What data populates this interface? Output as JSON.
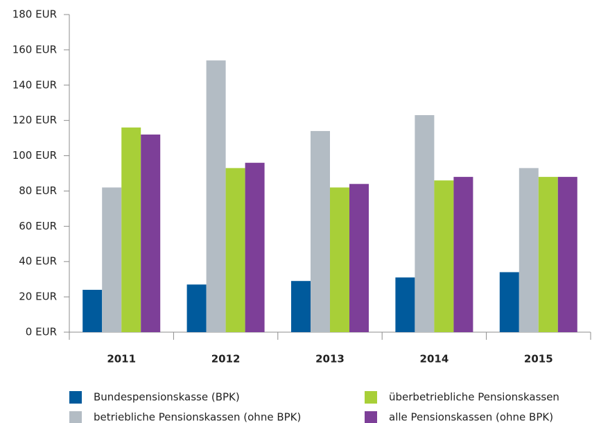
{
  "chart_data": {
    "type": "bar",
    "categories": [
      "2011",
      "2012",
      "2013",
      "2014",
      "2015"
    ],
    "series": [
      {
        "name": "Bundespensionskasse (BPK)",
        "color": "#005a9c",
        "values": [
          24,
          27,
          29,
          31,
          34
        ]
      },
      {
        "name": "betriebliche Pensionskassen (ohne BPK)",
        "color": "#b3bcc4",
        "values": [
          82,
          154,
          114,
          123,
          93
        ]
      },
      {
        "name": "überbetriebliche Pensionskassen",
        "color": "#a8cf38",
        "values": [
          116,
          93,
          82,
          86,
          88
        ]
      },
      {
        "name": "alle Pensionskassen (ohne BPK)",
        "color": "#7d3f98",
        "values": [
          112,
          96,
          84,
          88,
          88
        ]
      }
    ],
    "ylim": [
      0,
      180
    ],
    "yticks": [
      {
        "value": 0,
        "label": "0 EUR"
      },
      {
        "value": 20,
        "label": "20 EUR"
      },
      {
        "value": 40,
        "label": "40 EUR"
      },
      {
        "value": 60,
        "label": "60 EUR"
      },
      {
        "value": 80,
        "label": "80 EUR"
      },
      {
        "value": 100,
        "label": "100 EUR"
      },
      {
        "value": 120,
        "label": "120 EUR"
      },
      {
        "value": 140,
        "label": "140 EUR"
      },
      {
        "value": 160,
        "label": "160 EUR"
      },
      {
        "value": 180,
        "label": "180 EUR"
      }
    ],
    "grid": false,
    "legend": "bottom"
  }
}
